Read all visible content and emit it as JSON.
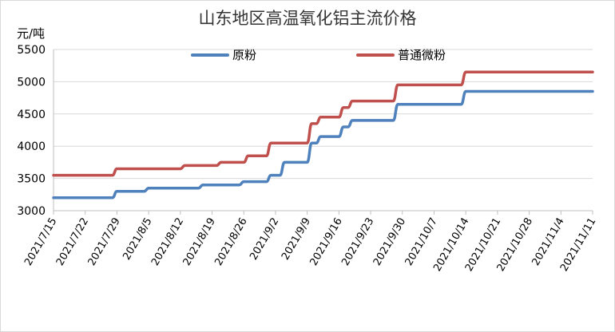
{
  "chart_data": {
    "type": "line",
    "title": "山东地区高温氧化铝主流价格",
    "ylabel": "元/吨",
    "ylim": [
      3000,
      5500
    ],
    "yticks": [
      3000,
      3500,
      4000,
      4500,
      5000,
      5500
    ],
    "xlim": [
      "2021/7/15",
      "2021/11/11"
    ],
    "categories": [
      "2021/7/15",
      "2021/7/22",
      "2021/7/29",
      "2021/8/5",
      "2021/8/12",
      "2021/8/19",
      "2021/8/26",
      "2021/9/2",
      "2021/9/9",
      "2021/9/16",
      "2021/9/23",
      "2021/9/30",
      "2021/10/7",
      "2021/10/14",
      "2021/10/21",
      "2021/10/28",
      "2021/11/4",
      "2021/11/11"
    ],
    "grid": "horizontal",
    "legend": "top",
    "series": [
      {
        "name": "原粉",
        "color": "#4F81BD",
        "points": [
          [
            "2021/7/15",
            3200
          ],
          [
            "2021/7/28",
            3200
          ],
          [
            "2021/7/29",
            3300
          ],
          [
            "2021/8/4",
            3300
          ],
          [
            "2021/8/5",
            3350
          ],
          [
            "2021/8/16",
            3350
          ],
          [
            "2021/8/17",
            3400
          ],
          [
            "2021/8/25",
            3400
          ],
          [
            "2021/8/26",
            3450
          ],
          [
            "2021/8/31",
            3450
          ],
          [
            "2021/9/1",
            3550
          ],
          [
            "2021/9/3",
            3550
          ],
          [
            "2021/9/4",
            3750
          ],
          [
            "2021/9/9",
            3750
          ],
          [
            "2021/9/10",
            4050
          ],
          [
            "2021/9/11",
            4050
          ],
          [
            "2021/9/12",
            4150
          ],
          [
            "2021/9/16",
            4150
          ],
          [
            "2021/9/17",
            4300
          ],
          [
            "2021/9/18",
            4300
          ],
          [
            "2021/9/19",
            4400
          ],
          [
            "2021/9/28",
            4400
          ],
          [
            "2021/9/29",
            4650
          ],
          [
            "2021/10/13",
            4650
          ],
          [
            "2021/10/14",
            4850
          ],
          [
            "2021/11/11",
            4850
          ]
        ]
      },
      {
        "name": "普通微粉",
        "color": "#C0504D",
        "points": [
          [
            "2021/7/15",
            3550
          ],
          [
            "2021/7/28",
            3550
          ],
          [
            "2021/7/29",
            3650
          ],
          [
            "2021/8/12",
            3650
          ],
          [
            "2021/8/13",
            3700
          ],
          [
            "2021/8/20",
            3700
          ],
          [
            "2021/8/21",
            3750
          ],
          [
            "2021/8/26",
            3750
          ],
          [
            "2021/8/27",
            3850
          ],
          [
            "2021/8/31",
            3850
          ],
          [
            "2021/9/1",
            4050
          ],
          [
            "2021/9/9",
            4050
          ],
          [
            "2021/9/10",
            4350
          ],
          [
            "2021/9/11",
            4350
          ],
          [
            "2021/9/12",
            4450
          ],
          [
            "2021/9/16",
            4450
          ],
          [
            "2021/9/17",
            4600
          ],
          [
            "2021/9/18",
            4600
          ],
          [
            "2021/9/19",
            4700
          ],
          [
            "2021/9/28",
            4700
          ],
          [
            "2021/9/29",
            4950
          ],
          [
            "2021/10/13",
            4950
          ],
          [
            "2021/10/14",
            5150
          ],
          [
            "2021/11/11",
            5150
          ]
        ]
      }
    ]
  }
}
